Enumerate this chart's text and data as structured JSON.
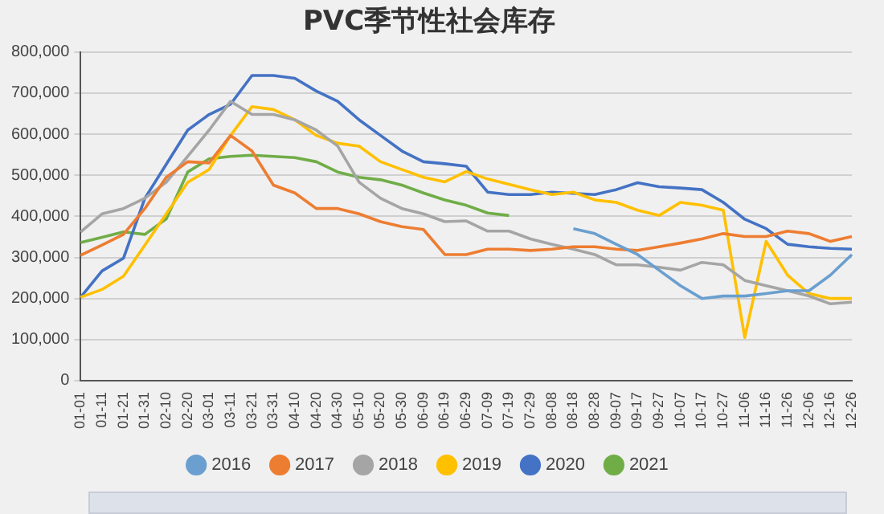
{
  "chart_data": {
    "type": "line",
    "title": "PVC季节性社会库存",
    "categories": [
      "01-01",
      "01-11",
      "01-21",
      "01-31",
      "02-10",
      "02-20",
      "03-01",
      "03-11",
      "03-21",
      "03-31",
      "04-10",
      "04-20",
      "04-30",
      "05-10",
      "05-20",
      "05-30",
      "06-09",
      "06-19",
      "06-29",
      "07-09",
      "07-19",
      "07-29",
      "08-08",
      "08-18",
      "08-28",
      "09-07",
      "09-17",
      "09-27",
      "10-07",
      "10-17",
      "10-27",
      "11-06",
      "11-16",
      "11-26",
      "12-06",
      "12-16",
      "12-26"
    ],
    "ylim": [
      0,
      800000
    ],
    "yticks": [
      0,
      {
        "value": 100000,
        "label": "100,000"
      },
      {
        "value": 200000,
        "label": "200,000"
      },
      {
        "value": 300000,
        "label": "300,000"
      },
      {
        "value": 400000,
        "label": "400,000"
      },
      {
        "value": 500000,
        "label": "500,000"
      },
      {
        "value": 600000,
        "label": "600,000"
      },
      {
        "value": 700000,
        "label": "700,000"
      },
      {
        "value": 800000,
        "label": "800,000"
      }
    ],
    "grid": "y",
    "legend": "bottom",
    "marker": "none",
    "series": [
      {
        "name": "2016",
        "color": "#6a9fcf",
        "values": [
          null,
          null,
          null,
          null,
          null,
          null,
          null,
          null,
          null,
          null,
          null,
          null,
          null,
          null,
          null,
          null,
          null,
          null,
          null,
          null,
          null,
          null,
          null,
          370000,
          358000,
          332000,
          307000,
          269000,
          231000,
          200000,
          206000,
          206000,
          212000,
          219000,
          219000,
          257000,
          307000
        ]
      },
      {
        "name": "2017",
        "color": "#ed7d31",
        "values": [
          305000,
          330000,
          356000,
          419000,
          495000,
          533000,
          530000,
          597000,
          559000,
          476000,
          457000,
          419000,
          419000,
          406000,
          387000,
          375000,
          368000,
          307000,
          307000,
          320000,
          320000,
          317000,
          320000,
          326000,
          326000,
          320000,
          317000,
          326000,
          335000,
          345000,
          358000,
          351000,
          351000,
          364000,
          358000,
          339000,
          351000
        ]
      },
      {
        "name": "2018",
        "color": "#a5a5a5",
        "values": [
          362000,
          406000,
          419000,
          444000,
          483000,
          546000,
          610000,
          680000,
          648000,
          648000,
          635000,
          610000,
          571000,
          483000,
          444000,
          419000,
          406000,
          387000,
          389000,
          364000,
          364000,
          345000,
          332000,
          320000,
          307000,
          282000,
          282000,
          276000,
          269000,
          288000,
          282000,
          244000,
          231000,
          219000,
          206000,
          187000,
          191000
        ]
      },
      {
        "name": "2019",
        "color": "#ffc000",
        "values": [
          203000,
          222000,
          254000,
          330000,
          406000,
          483000,
          514000,
          597000,
          667000,
          660000,
          635000,
          597000,
          578000,
          571000,
          533000,
          514000,
          495000,
          484000,
          509000,
          491000,
          478000,
          465000,
          453000,
          459000,
          440000,
          434000,
          415000,
          402000,
          434000,
          427000,
          415000,
          105000,
          339000,
          257000,
          212000,
          200000,
          200000
        ]
      },
      {
        "name": "2020",
        "color": "#4472c4",
        "values": [
          203000,
          267000,
          298000,
          444000,
          527000,
          610000,
          648000,
          673000,
          743000,
          743000,
          736000,
          705000,
          680000,
          635000,
          597000,
          559000,
          533000,
          528000,
          522000,
          459000,
          453000,
          453000,
          459000,
          456000,
          453000,
          465000,
          482000,
          472000,
          469000,
          465000,
          434000,
          393000,
          370000,
          332000,
          326000,
          322000,
          320000
        ]
      },
      {
        "name": "2021",
        "color": "#70ad47",
        "values": [
          336000,
          349000,
          362000,
          356000,
          394000,
          508000,
          540000,
          546000,
          549000,
          546000,
          543000,
          533000,
          508000,
          495000,
          489000,
          476000,
          457000,
          440000,
          427000,
          408000,
          402000,
          null,
          null,
          null,
          null,
          null,
          null,
          null,
          null,
          null,
          null,
          null,
          null,
          null,
          null,
          null,
          null
        ]
      }
    ]
  }
}
